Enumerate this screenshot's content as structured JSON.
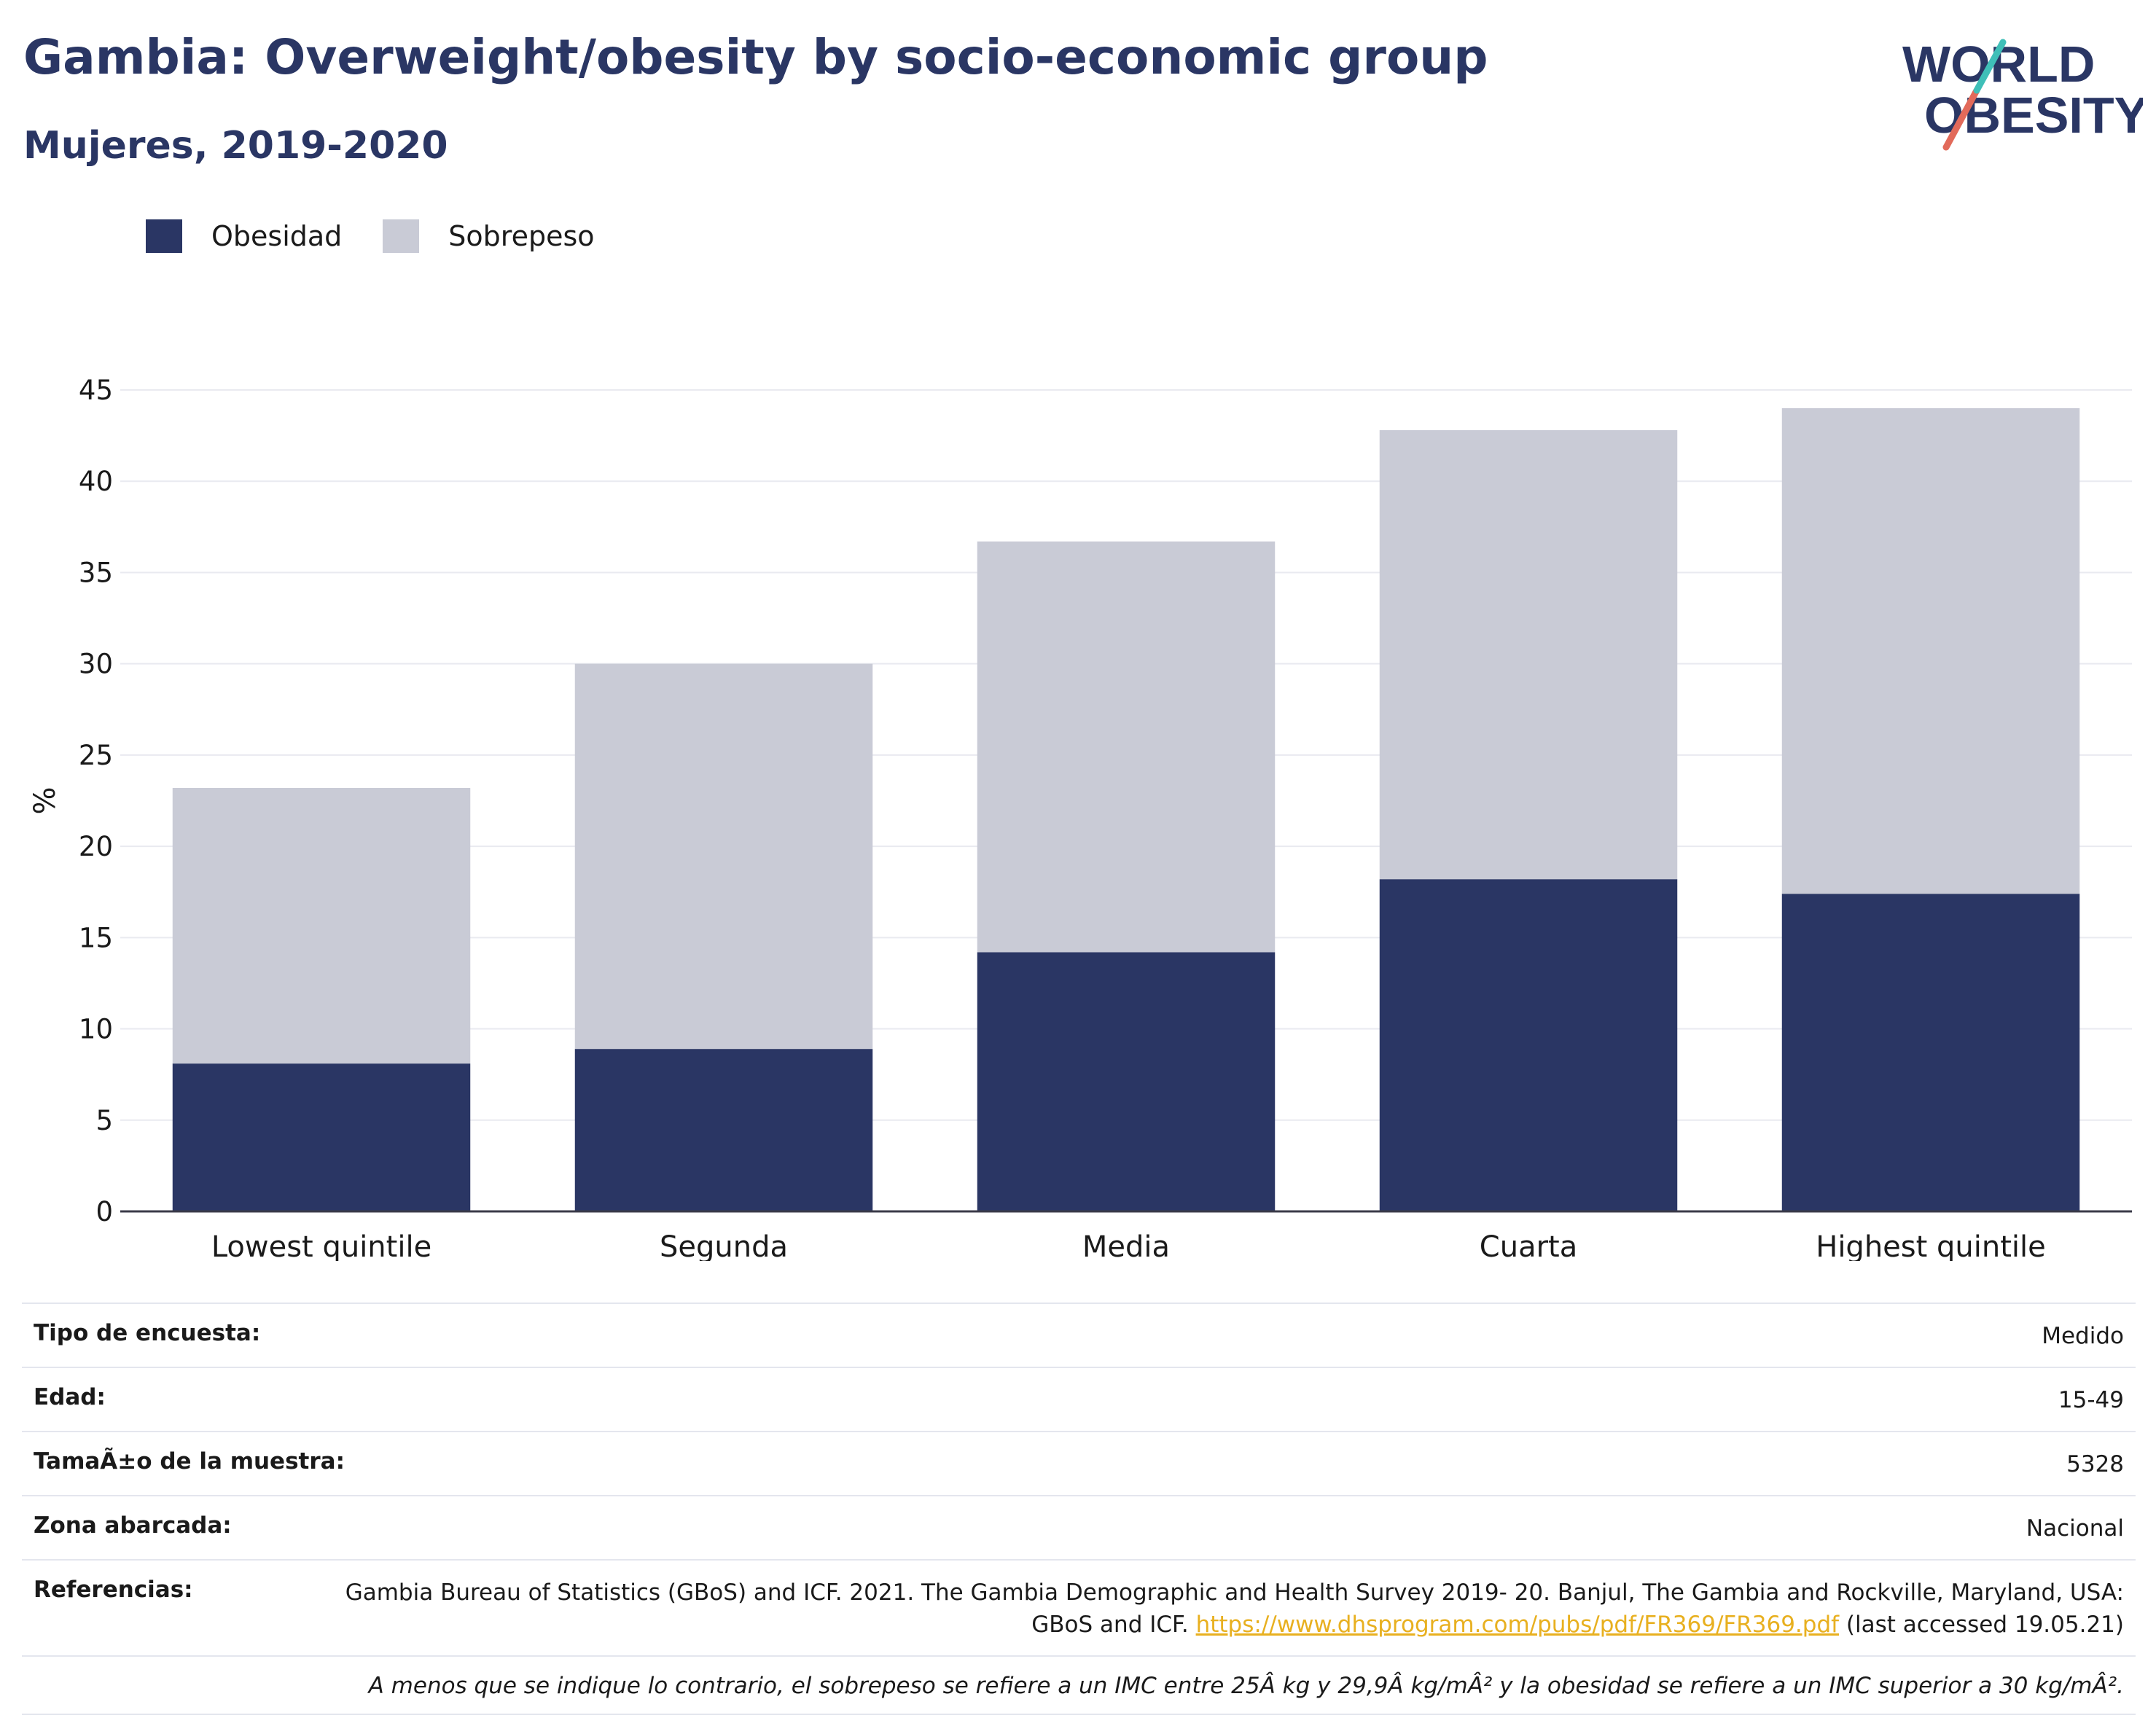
{
  "header": {
    "title": "Gambia: Overweight/obesity by socio-economic group",
    "subtitle": "Mujeres, 2019-2020"
  },
  "logo": {
    "line1": "WORLD",
    "line2": "OBESITY"
  },
  "colors": {
    "obesity": "#2a3664",
    "overweight": "#c9cbd6",
    "title": "#2a3664",
    "link": "#e8b020"
  },
  "chart_data": {
    "type": "bar",
    "stacked": true,
    "categories": [
      "Lowest quintile",
      "Segunda",
      "Media",
      "Cuarta",
      "Highest quintile"
    ],
    "series": [
      {
        "name": "Obesidad",
        "values": [
          8.1,
          8.9,
          14.2,
          18.2,
          17.4
        ]
      },
      {
        "name": "Sobrepeso",
        "values": [
          15.1,
          21.1,
          22.5,
          24.6,
          26.6
        ]
      }
    ],
    "ylabel": "%",
    "ylim": [
      0,
      45
    ],
    "yticks": [
      0,
      5,
      10,
      15,
      20,
      25,
      30,
      35,
      40,
      45
    ],
    "grid": true,
    "legend": "top-left"
  },
  "info": {
    "survey_type_label": "Tipo de encuesta:",
    "survey_type_value": "Medido",
    "age_label": "Edad:",
    "age_value": "15-49",
    "sample_label": "TamaÃ±o de la muestra:",
    "sample_value": "5328",
    "area_label": "Zona abarcada:",
    "area_value": "Nacional",
    "refs_label": "Referencias:",
    "refs_text": "Gambia Bureau of Statistics (GBoS) and ICF. 2021. The Gambia Demographic and Health Survey 2019- 20. Banjul, The Gambia and Rockville, Maryland, USA: GBoS and ICF.",
    "refs_link": "https://www.dhsprogram.com/pubs/pdf/FR369/FR369.pdf",
    "refs_suffix": "(last accessed 19.05.21)",
    "note": "A menos que se indique lo contrario, el sobrepeso se refiere a un IMC entre 25Â kg y 29,9Â kg/mÂ² y la obesidad se refiere a un IMC superior a 30 kg/mÂ²."
  }
}
